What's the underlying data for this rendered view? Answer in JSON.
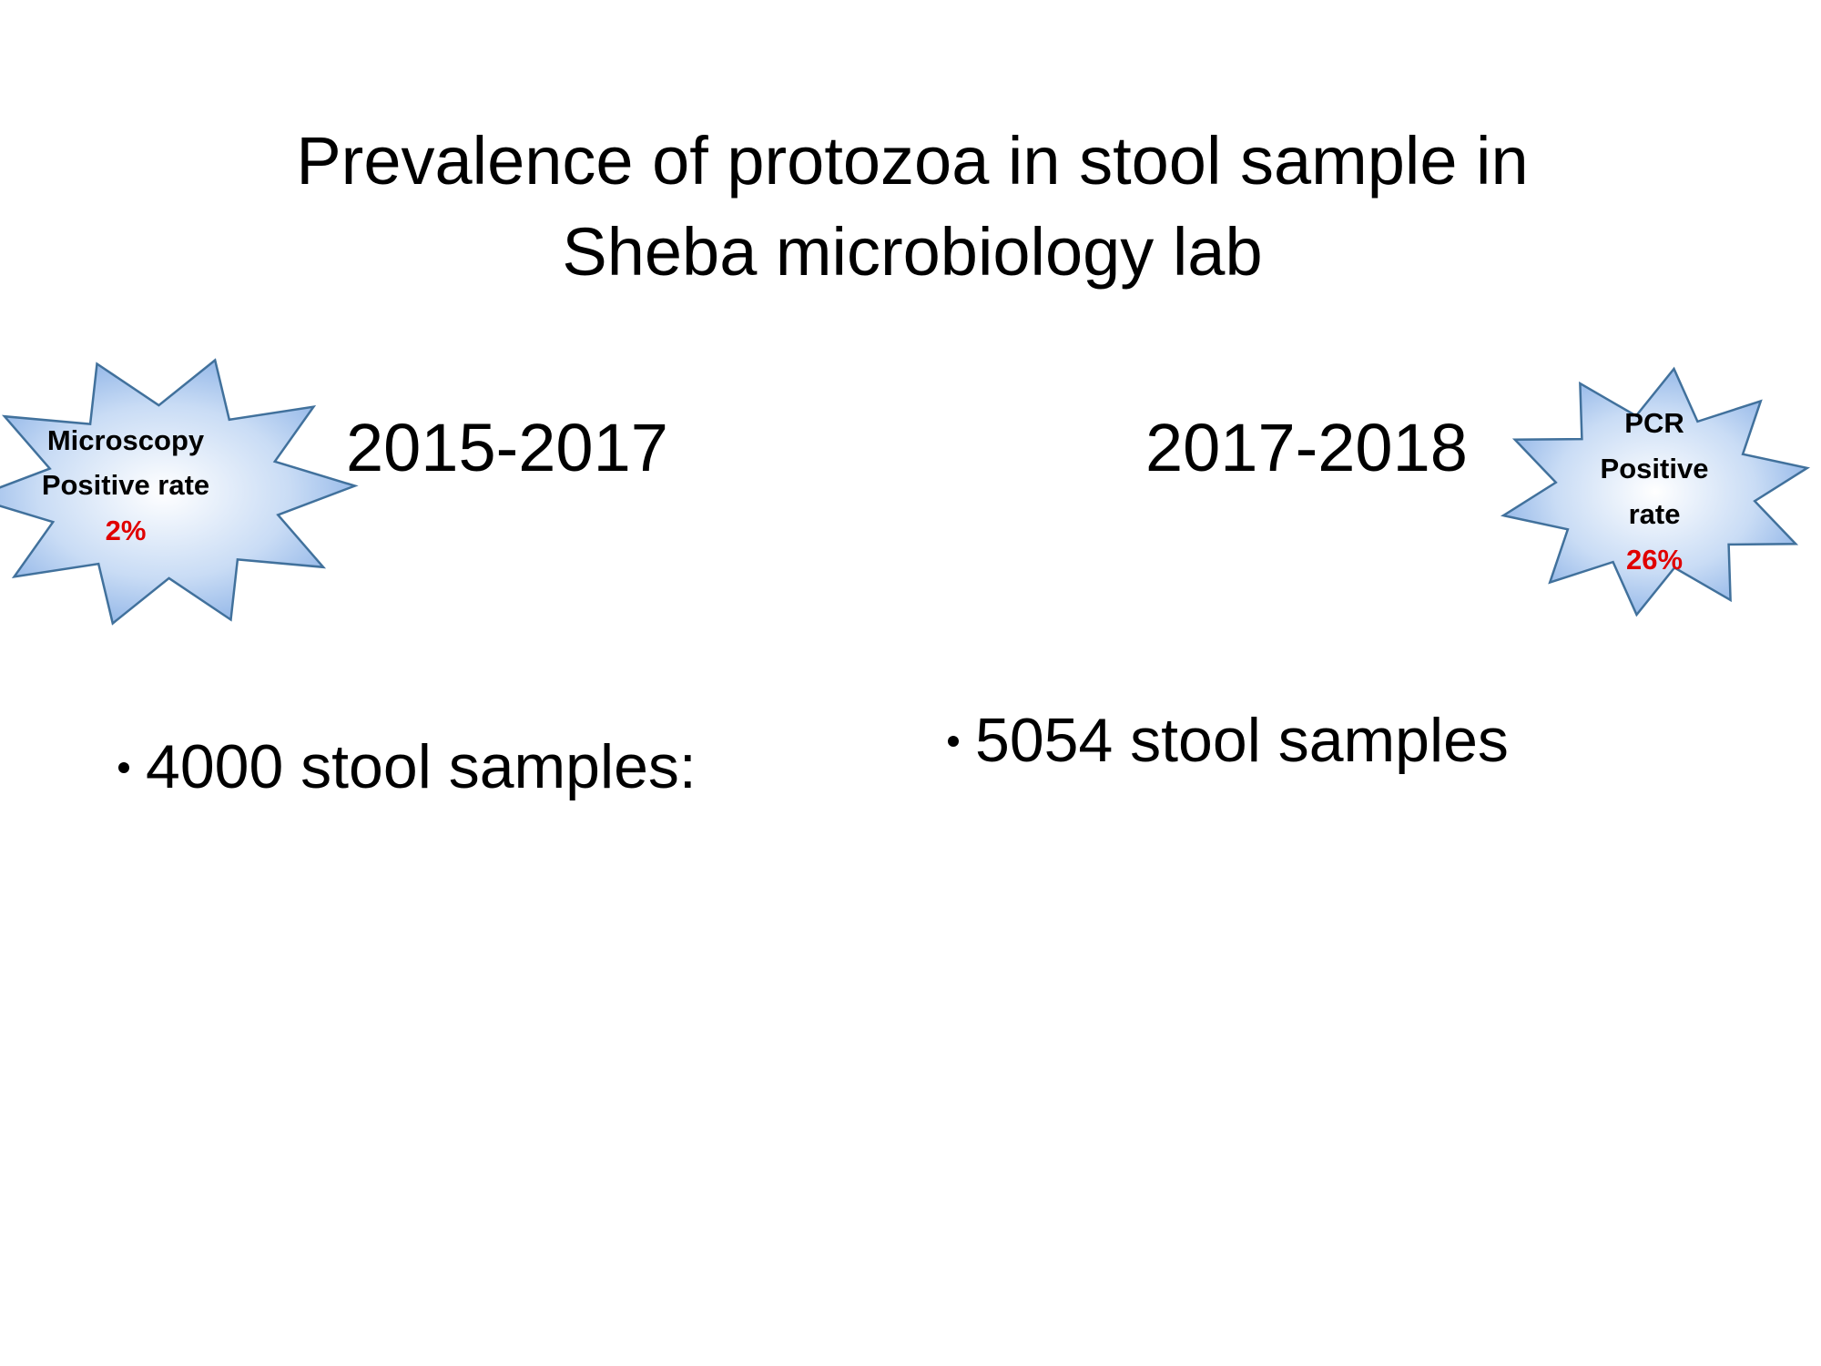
{
  "slide": {
    "title_lines": [
      "Prevalence of protozoa in stool sample in",
      "Sheba microbiology lab"
    ],
    "left": {
      "heading": "2015-2017",
      "bullet": "4000 stool samples:",
      "badge_lines": [
        "Microscopy",
        "Positive rate"
      ],
      "badge_rate": "2%"
    },
    "right": {
      "heading": "2017-2018",
      "bullet": "5054 stool samples",
      "badge_lines": [
        "PCR",
        "Positive",
        "rate"
      ],
      "badge_rate": "26%"
    }
  }
}
